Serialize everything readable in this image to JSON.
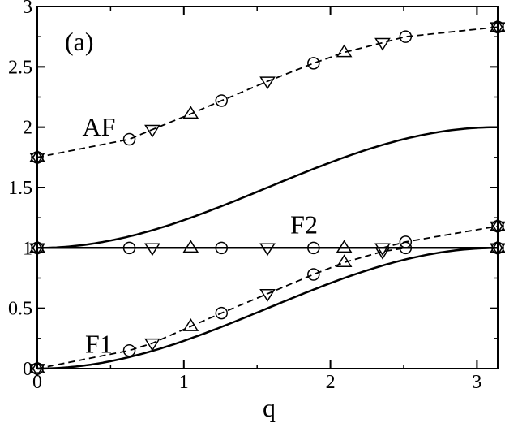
{
  "chart_data": {
    "type": "line",
    "panel_label": "(a)",
    "xlabel": "q",
    "ylabel": "",
    "xlim": [
      0,
      3.1416
    ],
    "ylim": [
      0,
      3
    ],
    "x_ticks": [
      0,
      1,
      2,
      3
    ],
    "y_ticks": [
      0,
      0.5,
      1,
      1.5,
      2,
      2.5,
      3
    ],
    "x_tick_labels": [
      "0",
      "1",
      "2",
      "3"
    ],
    "y_tick_labels": [
      "0",
      "0.5",
      "1",
      "1.5",
      "2",
      "2.5",
      "3"
    ],
    "grid": false,
    "annotations": [
      {
        "text": "AF",
        "x": 0.42,
        "y": 1.93
      },
      {
        "text": "F2",
        "x": 1.82,
        "y": 1.12
      },
      {
        "text": "F1",
        "x": 0.42,
        "y": 0.13
      }
    ],
    "series": [
      {
        "style": "solid",
        "func": "af_theory",
        "x_range": [
          0,
          3.1416
        ]
      },
      {
        "style": "solid",
        "func": "f2_theory",
        "x_range": [
          0,
          3.1416
        ]
      },
      {
        "style": "solid",
        "func": "f1_theory",
        "x_range": [
          0,
          3.1416
        ]
      },
      {
        "style": "dashed",
        "x": [
          0,
          0.628,
          0.785,
          1.047,
          1.257,
          1.571,
          1.885,
          2.094,
          2.356,
          2.513,
          3.1416
        ],
        "y": [
          1.75,
          1.9,
          1.98,
          2.11,
          2.22,
          2.38,
          2.53,
          2.62,
          2.7,
          2.75,
          2.83
        ]
      },
      {
        "style": "dashed",
        "x": [
          2.356,
          2.513,
          3.1416
        ],
        "y": [
          1.0,
          1.05,
          1.18
        ]
      },
      {
        "style": "dashed",
        "x": [
          0,
          0.628,
          0.785,
          1.047,
          1.257,
          1.571,
          1.885,
          2.094,
          2.356,
          2.513,
          3.1416
        ],
        "y": [
          0.0,
          0.15,
          0.21,
          0.35,
          0.46,
          0.62,
          0.78,
          0.88,
          0.97,
          1.0,
          1.0
        ]
      }
    ],
    "markers": [
      {
        "shape": "circle",
        "x": 0.628,
        "y": 1.9
      },
      {
        "shape": "tri-down",
        "x": 0.785,
        "y": 1.98
      },
      {
        "shape": "tri-up",
        "x": 1.047,
        "y": 2.11
      },
      {
        "shape": "circle",
        "x": 1.257,
        "y": 2.22
      },
      {
        "shape": "tri-down",
        "x": 1.571,
        "y": 2.38
      },
      {
        "shape": "circle",
        "x": 1.885,
        "y": 2.53
      },
      {
        "shape": "tri-up",
        "x": 2.094,
        "y": 2.62
      },
      {
        "shape": "tri-down",
        "x": 2.356,
        "y": 2.7
      },
      {
        "shape": "circle",
        "x": 2.513,
        "y": 2.75
      },
      {
        "shape": "star",
        "x": 0,
        "y": 1.75
      },
      {
        "shape": "star",
        "x": 3.1416,
        "y": 2.83
      },
      {
        "shape": "circle",
        "x": 0.628,
        "y": 1.0
      },
      {
        "shape": "tri-down",
        "x": 0.785,
        "y": 1.0
      },
      {
        "shape": "tri-up",
        "x": 1.047,
        "y": 1.0
      },
      {
        "shape": "circle",
        "x": 1.257,
        "y": 1.0
      },
      {
        "shape": "tri-down",
        "x": 1.571,
        "y": 1.0
      },
      {
        "shape": "circle",
        "x": 1.885,
        "y": 1.0
      },
      {
        "shape": "tri-up",
        "x": 2.094,
        "y": 1.0
      },
      {
        "shape": "tri-down",
        "x": 2.356,
        "y": 1.0
      },
      {
        "shape": "circle",
        "x": 2.513,
        "y": 1.0
      },
      {
        "shape": "circle",
        "x": 2.513,
        "y": 1.05
      },
      {
        "shape": "star",
        "x": 0,
        "y": 1.0
      },
      {
        "shape": "star",
        "x": 3.1416,
        "y": 1.0
      },
      {
        "shape": "star",
        "x": 3.1416,
        "y": 1.18
      },
      {
        "shape": "circle",
        "x": 0.628,
        "y": 0.15
      },
      {
        "shape": "tri-down",
        "x": 0.785,
        "y": 0.21
      },
      {
        "shape": "tri-up",
        "x": 1.047,
        "y": 0.35
      },
      {
        "shape": "circle",
        "x": 1.257,
        "y": 0.46
      },
      {
        "shape": "tri-down",
        "x": 1.571,
        "y": 0.62
      },
      {
        "shape": "circle",
        "x": 1.885,
        "y": 0.78
      },
      {
        "shape": "tri-up",
        "x": 2.094,
        "y": 0.88
      },
      {
        "shape": "tri-down",
        "x": 2.356,
        "y": 0.97
      },
      {
        "shape": "star",
        "x": 0,
        "y": 0.0
      }
    ]
  }
}
